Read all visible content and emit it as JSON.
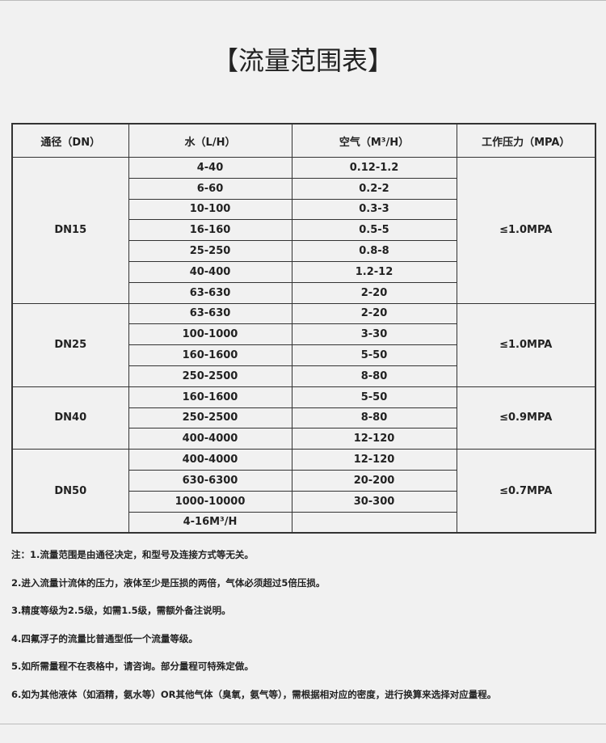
{
  "header": {
    "title": "【流量范围表】"
  },
  "table": {
    "columns": [
      "通径（DN）",
      "水（L/H）",
      "空气（M³/H）",
      "工作压力（MPA）"
    ],
    "groups": [
      {
        "dn": "DN15",
        "pressure": "≤1.0MPA",
        "rows": [
          [
            "4-40",
            "0.12-1.2"
          ],
          [
            "6-60",
            "0.2-2"
          ],
          [
            "10-100",
            "0.3-3"
          ],
          [
            "16-160",
            "0.5-5"
          ],
          [
            "25-250",
            "0.8-8"
          ],
          [
            "40-400",
            "1.2-12"
          ],
          [
            "63-630",
            "2-20"
          ]
        ]
      },
      {
        "dn": "DN25",
        "pressure": "≤1.0MPA",
        "rows": [
          [
            "63-630",
            "2-20"
          ],
          [
            "100-1000",
            "3-30"
          ],
          [
            "160-1600",
            "5-50"
          ],
          [
            "250-2500",
            "8-80"
          ]
        ]
      },
      {
        "dn": "DN40",
        "pressure": "≤0.9MPA",
        "rows": [
          [
            "160-1600",
            "5-50"
          ],
          [
            "250-2500",
            "8-80"
          ],
          [
            "400-4000",
            "12-120"
          ]
        ]
      },
      {
        "dn": "DN50",
        "pressure": "≤0.7MPA",
        "rows": [
          [
            "400-4000",
            "12-120"
          ],
          [
            "630-6300",
            "20-200"
          ],
          [
            "1000-10000",
            "30-300"
          ],
          [
            "4-16M³/H"
          ]
        ]
      }
    ]
  },
  "notes": [
    "注：1.流量范围是由通径决定，和型号及连接方式等无关。",
    "2.进入流量计流体的压力，液体至少是压损的两倍，气体必须超过5倍压损。",
    "3.精度等级为2.5级，如需1.5级，需额外备注说明。",
    "4.四氟浮子的流量比普通型低一个流量等级。",
    "5.如所需量程不在表格中，请咨询。部分量程可特殊定做。",
    "6.如为其他液体（如酒精，氨水等）OR其他气体（臭氧，氨气等），需根据相对应的密度，进行换算来选择对应量程。"
  ]
}
